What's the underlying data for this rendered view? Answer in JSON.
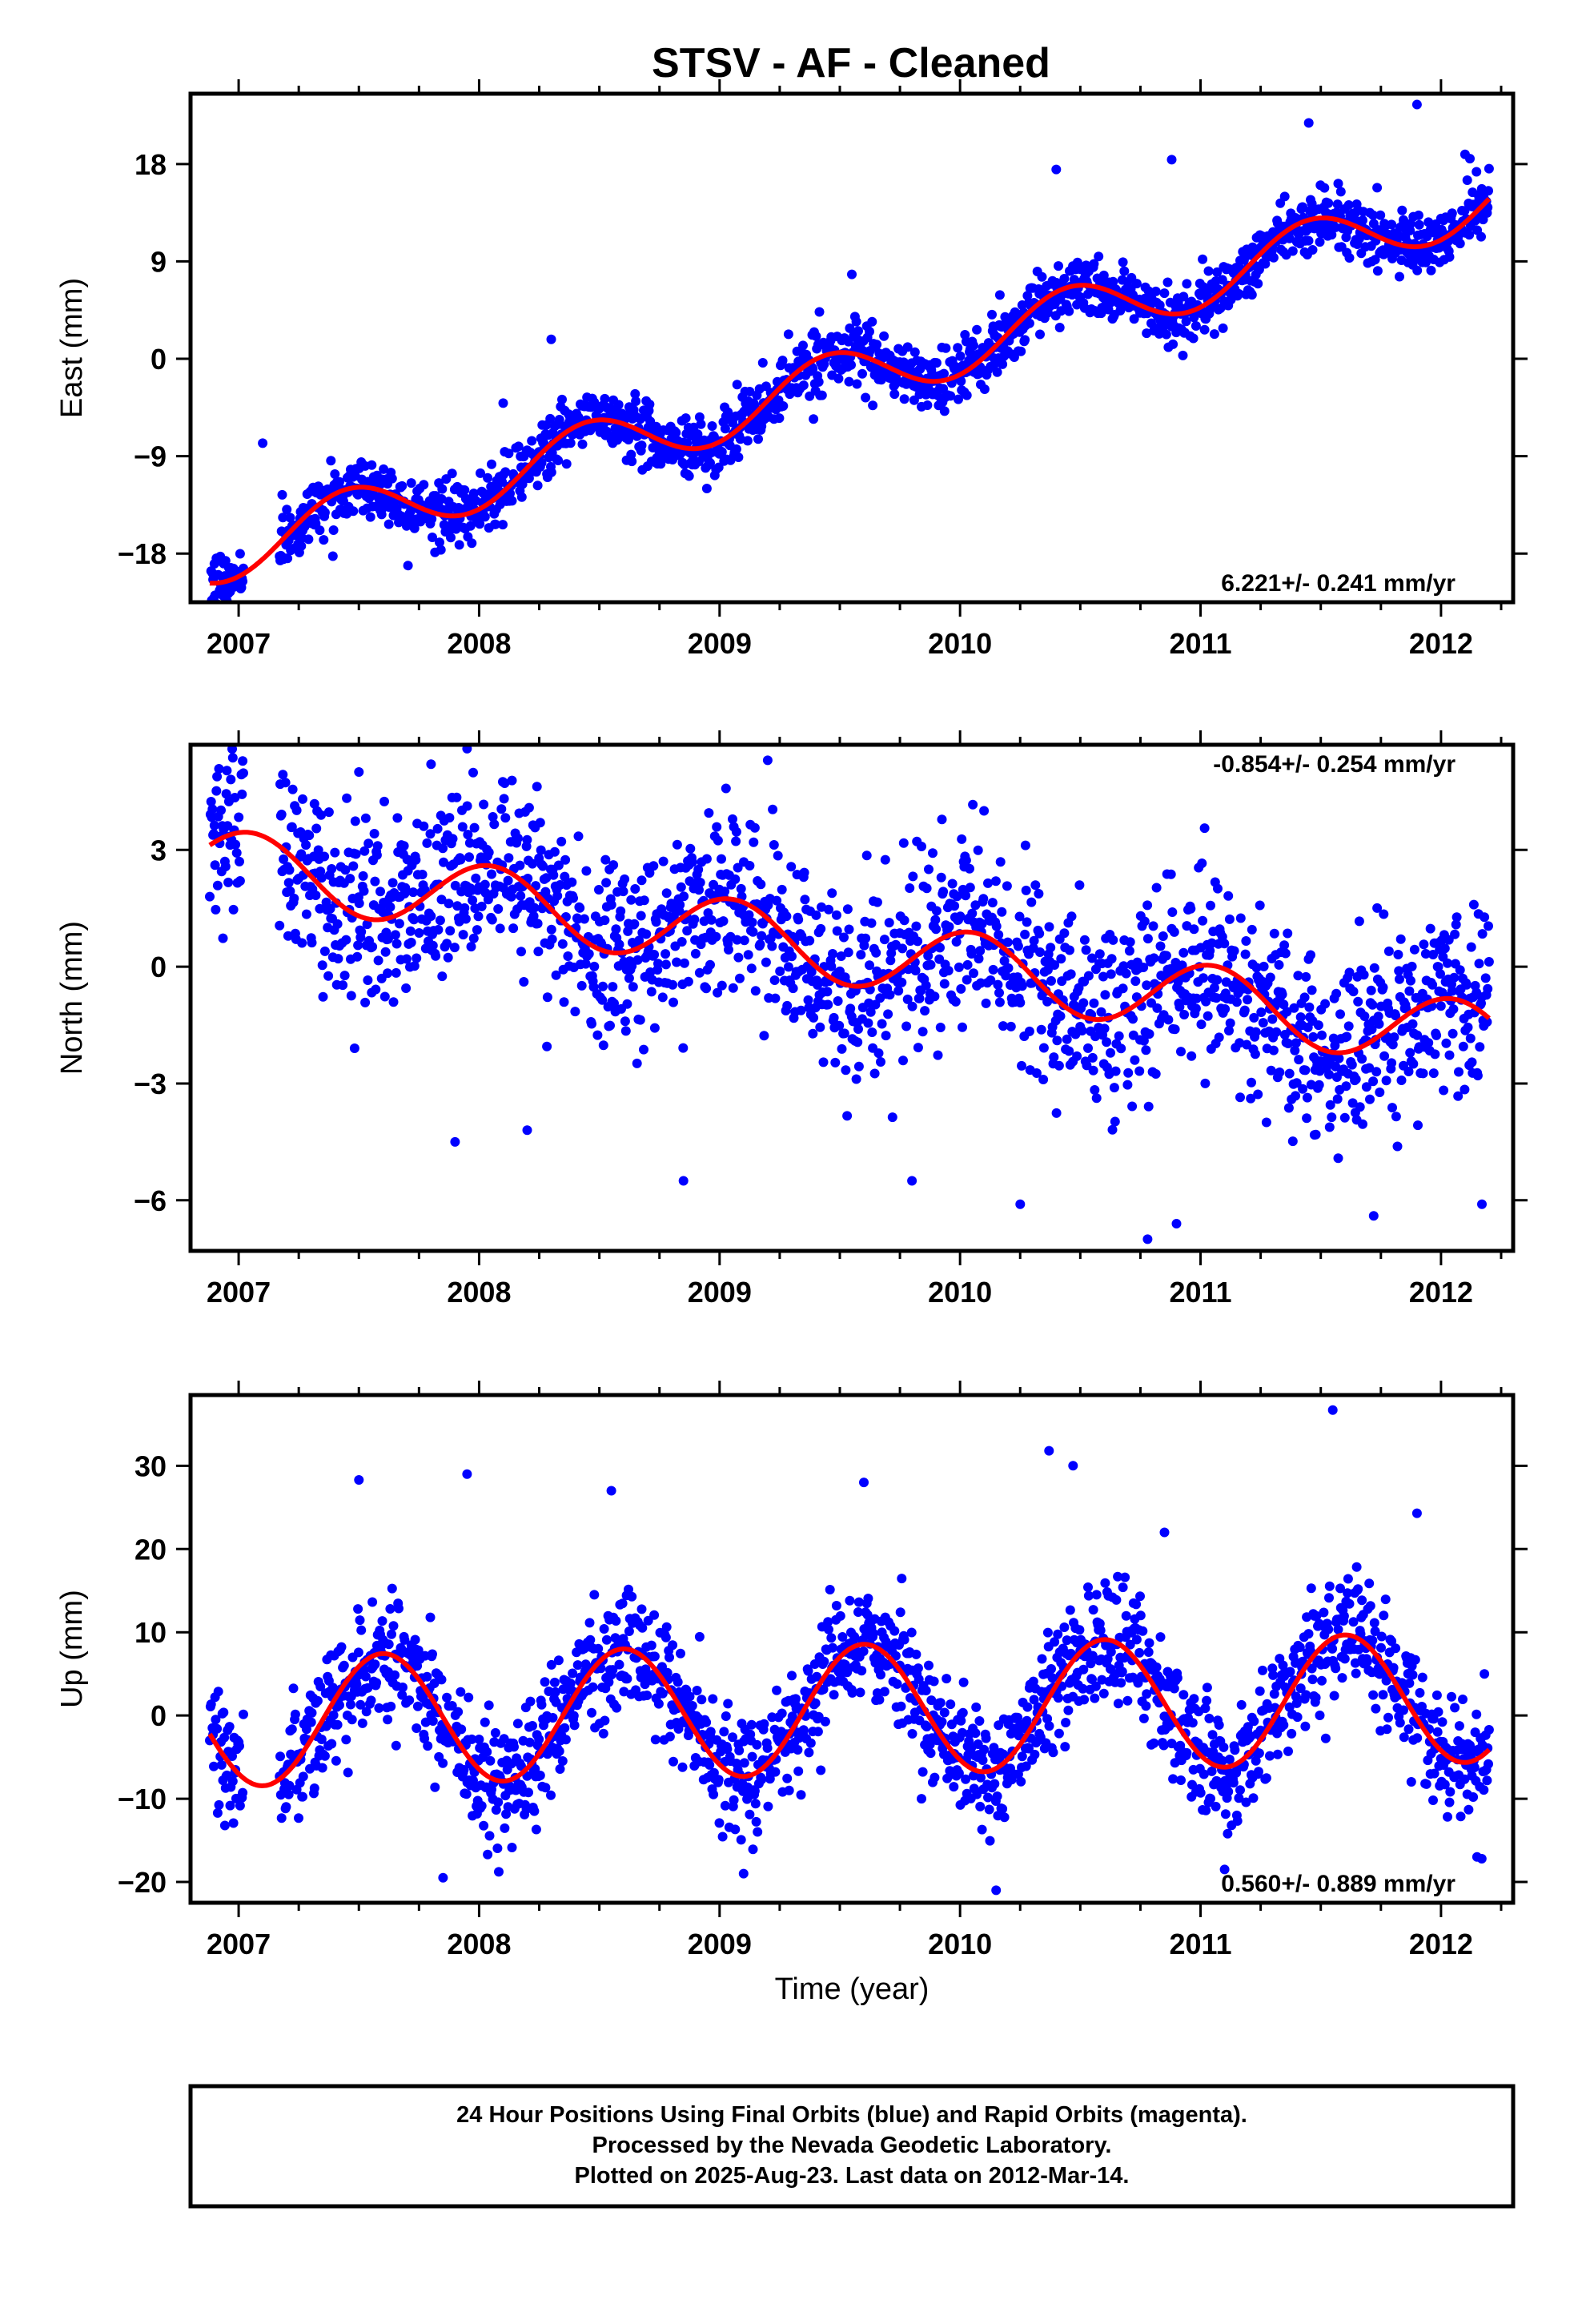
{
  "title": "STSV  - AF - Cleaned",
  "footer": {
    "line1": "24 Hour Positions Using Final Orbits (blue) and Rapid Orbits (magenta).",
    "line2": "Processed by the Nevada Geodetic Laboratory.",
    "line3": "Plotted on 2025-Aug-23. Last data on 2012-Mar-14."
  },
  "colors": {
    "points": "#0000ff",
    "fit": "#ff0000",
    "frame": "#000000"
  },
  "chart_data": [
    {
      "type": "scatter",
      "name": "east",
      "ylabel": "East (mm)",
      "xlabel": "",
      "xlim": [
        2006.8,
        2012.3
      ],
      "ylim": [
        -22.5,
        24.5
      ],
      "xticks": [
        2007,
        2008,
        2009,
        2010,
        2011,
        2012
      ],
      "yticks": [
        -18,
        -9,
        0,
        9,
        18
      ],
      "rate_text": "6.221+/- 0.241 mm/yr",
      "rate_position": "bottom-right",
      "data_start": 2006.88,
      "data_end": 2012.2,
      "trend_line": {
        "intercept_at_2009_5": -2.0,
        "slope_mm_per_yr": 6.221
      },
      "seasonal": {
        "amplitude_mm": 2.7,
        "phase_peak_year_fraction": 0.45
      },
      "scatter_sd_mm": 1.4,
      "outliers": [
        [
          2007.1,
          -7.8
        ],
        [
          2008.1,
          -4.1
        ],
        [
          2008.3,
          1.8
        ],
        [
          2009.55,
          7.8
        ],
        [
          2010.4,
          17.5
        ],
        [
          2010.88,
          18.4
        ],
        [
          2011.35,
          15.0
        ],
        [
          2011.45,
          21.8
        ],
        [
          2011.9,
          23.5
        ],
        [
          2012.1,
          18.9
        ]
      ]
    },
    {
      "type": "scatter",
      "name": "north",
      "ylabel": "North (mm)",
      "xlabel": "",
      "xlim": [
        2006.8,
        2012.3
      ],
      "ylim": [
        -7.3,
        5.7
      ],
      "xticks": [
        2007,
        2008,
        2009,
        2010,
        2011,
        2012
      ],
      "yticks": [
        -6,
        -3,
        0,
        3
      ],
      "rate_text": "-0.854+/- 0.254 mm/yr",
      "rate_position": "top-right",
      "data_start": 2006.88,
      "data_end": 2012.2,
      "trend_line": {
        "intercept_at_2009_5": 0.45,
        "slope_mm_per_yr": -0.854
      },
      "seasonal": {
        "amplitude_mm": 0.9,
        "phase_peak_year_fraction": 0.05
      },
      "scatter_sd_mm": 1.2,
      "outliers": [
        [
          2007.5,
          5.0
        ],
        [
          2007.8,
          5.2
        ],
        [
          2007.95,
          5.6
        ],
        [
          2009.2,
          5.3
        ],
        [
          2007.9,
          -4.5
        ],
        [
          2008.2,
          -4.2
        ],
        [
          2008.85,
          -5.5
        ],
        [
          2009.8,
          -5.5
        ],
        [
          2010.25,
          -6.1
        ],
        [
          2010.9,
          -6.6
        ],
        [
          2010.78,
          -7.0
        ],
        [
          2012.17,
          -6.1
        ],
        [
          2011.72,
          -6.4
        ]
      ]
    },
    {
      "type": "scatter",
      "name": "up",
      "ylabel": "Up (mm)",
      "xlabel": "Time (year)",
      "xlim": [
        2006.8,
        2012.3
      ],
      "ylim": [
        -22.5,
        38.5
      ],
      "xticks": [
        2007,
        2008,
        2009,
        2010,
        2011,
        2012
      ],
      "yticks": [
        -20,
        -10,
        0,
        10,
        20,
        30
      ],
      "rate_text": "0.560+/- 0.889 mm/yr",
      "rate_position": "bottom-right",
      "data_start": 2006.88,
      "data_end": 2012.2,
      "trend_line": {
        "intercept_at_2009_5": 0.7,
        "slope_mm_per_yr": 0.56
      },
      "seasonal": {
        "amplitude_mm": 7.8,
        "phase_peak_year_fraction": 0.6
      },
      "scatter_sd_mm": 3.6,
      "outliers": [
        [
          2007.5,
          28.3
        ],
        [
          2007.95,
          29.0
        ],
        [
          2008.55,
          27.0
        ],
        [
          2009.6,
          28.0
        ],
        [
          2010.37,
          31.8
        ],
        [
          2010.47,
          30.0
        ],
        [
          2010.85,
          22.0
        ],
        [
          2011.55,
          36.7
        ],
        [
          2011.9,
          24.3
        ],
        [
          2007.85,
          -19.5
        ],
        [
          2009.1,
          -19.0
        ],
        [
          2010.15,
          -21.0
        ],
        [
          2011.1,
          -18.5
        ],
        [
          2012.15,
          -17.0
        ]
      ]
    }
  ]
}
